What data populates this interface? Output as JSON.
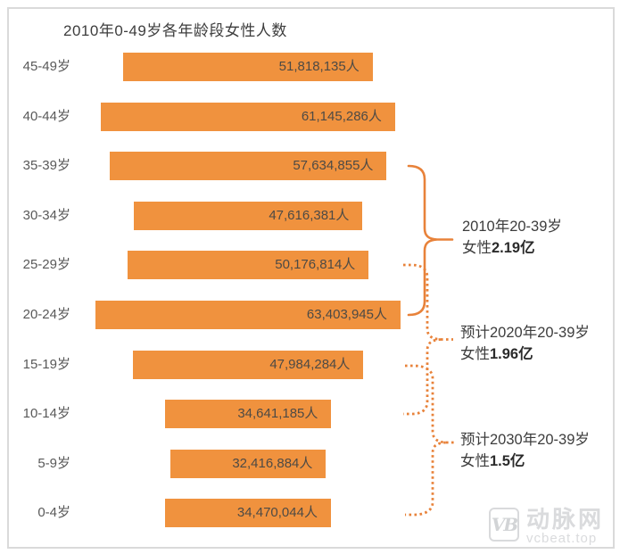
{
  "colors": {
    "bar": "#F0923E",
    "brace": "#E8823A",
    "border": "#dadada",
    "axis_label": "#595959",
    "value_text": "#4d4a45",
    "annotation_text": "#3d3d3d",
    "watermark": "#dadbdd"
  },
  "chart_data": {
    "type": "bar",
    "orientation": "horizontal-centered-funnel",
    "title": "2010年0-49岁各年龄段女性人数",
    "unit": "人",
    "categories": [
      "45-49岁",
      "40-44岁",
      "35-39岁",
      "30-34岁",
      "25-29岁",
      "20-24岁",
      "15-19岁",
      "10-14岁",
      "5-9岁",
      "0-4岁"
    ],
    "values": [
      51818135,
      61145286,
      57634855,
      47616381,
      50176814,
      63403945,
      47984284,
      34641185,
      32416884,
      34470044
    ],
    "value_labels": [
      "51,818,135人",
      "61,145,286人",
      "57,634,855人",
      "47,616,381人",
      "50,176,814人",
      "63,403,945人",
      "47,984,284人",
      "34,641,185人",
      "32,416,884人",
      "34,470,044人"
    ],
    "legend": "none",
    "grid": false,
    "annotations": [
      {
        "line1": "2010年20-39岁",
        "prefix": "女性",
        "value": "2.19亿",
        "brace_style": "solid",
        "spans_categories": [
          "35-39岁",
          "20-24岁"
        ]
      },
      {
        "line1": "预计2020年20-39岁",
        "prefix": "女性",
        "value": "1.96亿",
        "brace_style": "dotted",
        "spans_categories": [
          "25-29岁",
          "10-14岁"
        ]
      },
      {
        "line1": "预计2030年20-39岁",
        "prefix": "女性",
        "value": "1.5亿",
        "brace_style": "dotted",
        "spans_categories": [
          "15-19岁",
          "0-4岁"
        ]
      }
    ]
  },
  "watermark": {
    "logo_text": "VB",
    "name": "动脉网",
    "url": "vcbeat.top"
  }
}
